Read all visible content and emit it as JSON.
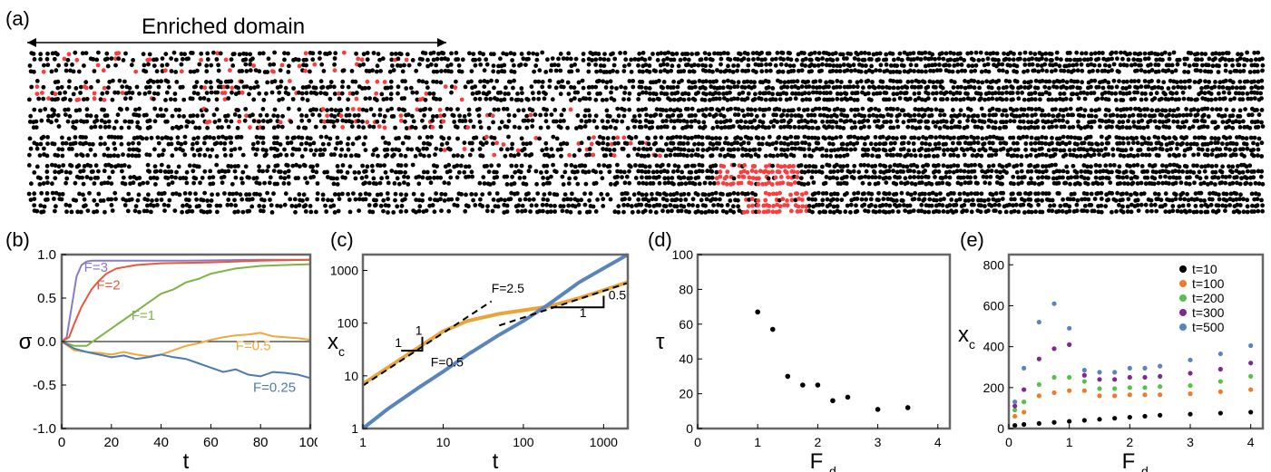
{
  "figure": {
    "panel_labels": [
      "(a)",
      "(b)",
      "(c)",
      "(d)",
      "(e)"
    ],
    "enriched_label": "Enriched domain",
    "strip_rows": 6,
    "colors": {
      "particle": "#000000",
      "enriched": "#ff3b3b",
      "frame": "#666666"
    }
  },
  "chart_data": [
    {
      "id": "b",
      "type": "line",
      "ylabel": "σ",
      "xlabel": "t",
      "xlim": [
        0,
        100
      ],
      "ylim": [
        -1.0,
        1.0
      ],
      "xticks": [
        0,
        20,
        40,
        60,
        80,
        100
      ],
      "yticks": [
        -1.0,
        -0.5,
        0.0,
        0.5,
        1.0
      ],
      "ytick_labels": [
        "-1.0",
        "-0.5",
        "0.0",
        "0.5",
        "1.0"
      ],
      "series": [
        {
          "name": "F=3",
          "color": "#8b79c8",
          "x": [
            0,
            2,
            4,
            6,
            8,
            10,
            12,
            15,
            20,
            30,
            50,
            80,
            100
          ],
          "y": [
            0,
            0.05,
            0.4,
            0.75,
            0.88,
            0.92,
            0.93,
            0.93,
            0.93,
            0.93,
            0.93,
            0.94,
            0.94
          ]
        },
        {
          "name": "F=2",
          "color": "#e8593a",
          "x": [
            0,
            3,
            5,
            8,
            10,
            12,
            15,
            18,
            22,
            30,
            40,
            60,
            80,
            100
          ],
          "y": [
            0,
            0.05,
            0.2,
            0.4,
            0.5,
            0.6,
            0.7,
            0.78,
            0.84,
            0.88,
            0.9,
            0.91,
            0.93,
            0.94
          ]
        },
        {
          "name": "F=1",
          "color": "#7fb346",
          "x": [
            0,
            5,
            10,
            15,
            20,
            25,
            30,
            35,
            40,
            45,
            50,
            55,
            60,
            70,
            80,
            90,
            100
          ],
          "y": [
            0,
            -0.05,
            -0.05,
            0.05,
            0.15,
            0.25,
            0.35,
            0.45,
            0.55,
            0.6,
            0.68,
            0.72,
            0.78,
            0.84,
            0.87,
            0.88,
            0.89
          ]
        },
        {
          "name": "F=0.5",
          "color": "#f0a838",
          "x": [
            0,
            5,
            10,
            15,
            20,
            25,
            30,
            35,
            40,
            45,
            50,
            55,
            60,
            65,
            70,
            75,
            80,
            85,
            90,
            95,
            100
          ],
          "y": [
            0,
            -0.1,
            -0.12,
            -0.13,
            -0.15,
            -0.12,
            -0.15,
            -0.17,
            -0.15,
            -0.1,
            -0.05,
            -0.02,
            0.02,
            0.05,
            0.07,
            0.08,
            0.1,
            0.06,
            0.05,
            0.04,
            0.02
          ]
        },
        {
          "name": "F=0.25",
          "color": "#4d79b7",
          "x": [
            0,
            5,
            10,
            15,
            20,
            25,
            30,
            35,
            40,
            45,
            50,
            55,
            60,
            65,
            70,
            75,
            80,
            85,
            90,
            95,
            100
          ],
          "y": [
            0,
            -0.08,
            -0.12,
            -0.15,
            -0.18,
            -0.16,
            -0.2,
            -0.18,
            -0.15,
            -0.18,
            -0.2,
            -0.25,
            -0.3,
            -0.35,
            -0.32,
            -0.38,
            -0.4,
            -0.35,
            -0.36,
            -0.38,
            -0.42
          ]
        }
      ],
      "labels": [
        {
          "text": "F=3",
          "x": 9,
          "y": 0.8
        },
        {
          "text": "F=2",
          "x": 14,
          "y": 0.6
        },
        {
          "text": "F=1",
          "x": 28,
          "y": 0.25
        },
        {
          "text": "F=0.5",
          "x": 70,
          "y": -0.1
        },
        {
          "text": "F=0.25",
          "x": 77,
          "y": -0.58
        }
      ]
    },
    {
      "id": "c",
      "type": "line",
      "ylabel": "x",
      "ylabel_sub": "c",
      "xlabel": "t",
      "xscale": "log",
      "yscale": "log",
      "xlim": [
        1,
        2000
      ],
      "ylim": [
        1,
        2000
      ],
      "xticks": [
        1,
        10,
        100,
        1000
      ],
      "yticks": [
        1,
        10,
        100,
        1000
      ],
      "series": [
        {
          "name": "F=2.5",
          "color": "#eaa43a",
          "x": [
            1,
            2,
            5,
            10,
            20,
            50,
            100,
            200,
            500,
            1000,
            2000
          ],
          "y": [
            7,
            14,
            35,
            70,
            110,
            150,
            175,
            205,
            300,
            420,
            600
          ]
        },
        {
          "name": "F=0.5",
          "color": "#5a84bd",
          "x": [
            1,
            2,
            5,
            10,
            20,
            50,
            100,
            200,
            500,
            1000,
            2000
          ],
          "y": [
            1,
            2.3,
            6,
            12,
            25,
            60,
            110,
            220,
            600,
            1100,
            2000
          ]
        }
      ],
      "dashed_lines": [
        {
          "x": [
            1,
            40
          ],
          "y": [
            6.5,
            260
          ]
        },
        {
          "x": [
            50,
            2000
          ],
          "y": [
            90,
            580
          ]
        }
      ],
      "labels": [
        {
          "text": "F=2.5",
          "x": 40,
          "y": 380
        },
        {
          "text": "F=0.5",
          "x": 7,
          "y": 15
        },
        {
          "text": "1",
          "x": 4.5,
          "y": 60
        },
        {
          "text": "1",
          "x": 2.5,
          "y": 35
        },
        {
          "text": "1",
          "x": 500,
          "y": 130
        },
        {
          "text": "0.5",
          "x": 1150,
          "y": 280
        }
      ],
      "slope_triangles": [
        {
          "x": [
            3,
            5.5,
            5.5
          ],
          "y": [
            30,
            30,
            55
          ]
        },
        {
          "x": [
            220,
            1000,
            1000
          ],
          "y": [
            200,
            200,
            330
          ]
        }
      ]
    },
    {
      "id": "d",
      "type": "scatter",
      "ylabel": "τ",
      "xlabel": "F",
      "xlabel_sub": "d",
      "xlim": [
        0,
        4.2
      ],
      "ylim": [
        0,
        100
      ],
      "xticks": [
        0,
        1,
        2,
        3,
        4
      ],
      "yticks": [
        0,
        20,
        40,
        60,
        80,
        100
      ],
      "series": [
        {
          "name": "",
          "color": "#000000",
          "x": [
            1.0,
            1.25,
            1.5,
            1.75,
            2.0,
            2.25,
            2.5,
            3.0,
            3.5
          ],
          "y": [
            67,
            57,
            30,
            25,
            25,
            16,
            18,
            11,
            12
          ]
        }
      ]
    },
    {
      "id": "e",
      "type": "scatter",
      "ylabel": "x",
      "ylabel_sub": "c",
      "xlabel": "F",
      "xlabel_sub": "d",
      "xlim": [
        0,
        4.2
      ],
      "ylim": [
        0,
        850
      ],
      "xticks": [
        0,
        1,
        2,
        3,
        4
      ],
      "yticks": [
        0,
        200,
        400,
        600,
        800
      ],
      "x": [
        0.1,
        0.25,
        0.5,
        0.75,
        1.0,
        1.25,
        1.5,
        1.75,
        2.0,
        2.25,
        2.5,
        3.0,
        3.5,
        4.0
      ],
      "series": [
        {
          "name": "t=10",
          "color": "#000000",
          "values": [
            15,
            20,
            25,
            30,
            35,
            40,
            45,
            50,
            55,
            60,
            65,
            70,
            75,
            80
          ]
        },
        {
          "name": "t=100",
          "color": "#f07a2a",
          "values": [
            60,
            80,
            160,
            175,
            185,
            185,
            160,
            160,
            165,
            165,
            165,
            170,
            180,
            190
          ]
        },
        {
          "name": "t=200",
          "color": "#56c04a",
          "values": [
            90,
            130,
            215,
            250,
            250,
            230,
            195,
            195,
            200,
            200,
            205,
            210,
            230,
            255
          ]
        },
        {
          "name": "t=300",
          "color": "#7b2a8f",
          "values": [
            110,
            190,
            340,
            390,
            410,
            260,
            240,
            240,
            250,
            250,
            255,
            270,
            290,
            320
          ]
        },
        {
          "name": "t=500",
          "color": "#5a84bd",
          "values": [
            130,
            295,
            520,
            610,
            490,
            285,
            275,
            275,
            295,
            295,
            305,
            335,
            365,
            405
          ]
        }
      ]
    }
  ]
}
